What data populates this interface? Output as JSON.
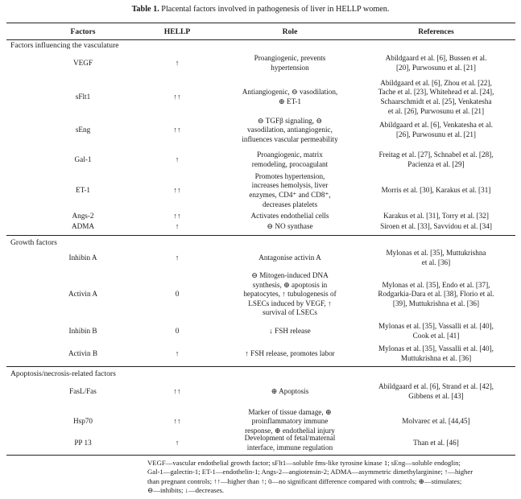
{
  "caption": {
    "label": "Table 1.",
    "text": "Placental factors involved in pathogenesis of liver in HELLP women."
  },
  "headers": {
    "factors": "Factors",
    "hellp": "HELLP",
    "role": "Role",
    "references": "References"
  },
  "sections": [
    {
      "title": "Factors influencing the vasculature",
      "rows": [
        {
          "factor": "VEGF",
          "hellp": "↑",
          "role": [
            "Proangiogenic, prevents",
            "hypertension"
          ],
          "refs": [
            "Abildgaard et al. [6], Bussen et al.",
            "[20], Purwosunu et al. [21]"
          ]
        },
        {
          "factor": "sFlt1",
          "hellp": "↑↑",
          "role": [
            "Antiangiogenic, ⊖ vasodilation,",
            "⊕ ET-1"
          ],
          "refs": [
            "Abildgaard et al. [6], Zhou et al. [22],",
            "Tache et al. [23], Whitehead et al. [24],",
            "Schaarschmidt et al. [25], Venkatesha",
            "et al. [26], Purwosunu et al. [21]"
          ]
        },
        {
          "factor": "sEng",
          "hellp": "↑↑",
          "role": [
            "⊖ TGFβ signaling, ⊖",
            "vasodilation, antiangiogenic,",
            "influences vascular permeability"
          ],
          "refs": [
            "Abildgaard et al. [6], Venkatesha et al.",
            "[26], Purwosunu et al. [21]"
          ]
        },
        {
          "factor": "Gal-1",
          "hellp": "↑",
          "role": [
            "Proangiogenic, matrix",
            "remodeling, procoagulant"
          ],
          "refs": [
            "Freitag et al. [27], Schnabel et al. [28],",
            "Pacienza et al. [29]"
          ]
        },
        {
          "factor": "ET-1",
          "hellp": "↑↑",
          "role": [
            "Promotes hypertension,",
            "increases hemolysis, liver",
            "enzymes, CD4⁺ and CD8⁺,",
            "decreases platelets"
          ],
          "refs": [
            "Morris et al. [30], Karakus et al. [31]"
          ]
        },
        {
          "factor": "Angs-2",
          "hellp": "↑↑",
          "role": [
            "Activates endothelial cells"
          ],
          "refs": [
            "Karakus et al. [31], Torry et al. [32]"
          ]
        },
        {
          "factor": "ADMA",
          "hellp": "↑",
          "role": [
            "⊖ NO synthase"
          ],
          "refs": [
            "Siroen et al. [33], Savvidou et al. [34]"
          ]
        }
      ]
    },
    {
      "title": "Growth factors",
      "rows": [
        {
          "factor": "Inhibin A",
          "hellp": "↑",
          "role": [
            "Antagonise activin A"
          ],
          "refs": [
            "Mylonas et al. [35], Muttukrishna",
            "et al. [36]"
          ]
        },
        {
          "factor": "Activin A",
          "hellp": "0",
          "role": [
            "⊖ Mitogen-induced DNA",
            "synthesis, ⊕ apoptosis in",
            "hepatocytes, ↑ tubulogenesis of",
            "LSECs induced by VEGF, ↑",
            "survival of LSECs"
          ],
          "refs": [
            "Mylonas et al. [35], Endo et al. [37],",
            "Rodgarkia-Dara et al. [38], Florio et al.",
            "[39], Muttukrishna et al. [36]"
          ]
        },
        {
          "factor": "Inhibin B",
          "hellp": "0",
          "role": [
            "↓ FSH release"
          ],
          "refs": [
            "Mylonas et al. [35], Vassalli et al. [40],",
            "Cook et al. [41]"
          ]
        },
        {
          "factor": "Activin B",
          "hellp": "↑",
          "role": [
            "↑ FSH release, promotes labor"
          ],
          "refs": [
            "Mylonas et al. [35], Vassalli et al. [40],",
            "Muttukrishna et al. [36]"
          ]
        }
      ]
    },
    {
      "title": "Apoptosis/necrosis-related factors",
      "rows": [
        {
          "factor": "FasL/Fas",
          "hellp": "↑↑",
          "role": [
            "⊕ Apoptosis"
          ],
          "refs": [
            "Abildgaard et al. [6], Strand et al. [42],",
            "Gibbens et al. [43]"
          ]
        },
        {
          "factor": "Hsp70",
          "hellp": "↑↑",
          "role": [
            "Marker of tissue damage, ⊕",
            "proinflammatory immune",
            "response, ⊕ endothelial injury"
          ],
          "refs": [
            "Molvarec et al. [44,45]"
          ]
        },
        {
          "factor": "PP 13",
          "hellp": "↑",
          "role": [
            "Development of fetal/maternal",
            "interface, immune regulation"
          ],
          "refs": [
            "Than et al. [46]"
          ]
        }
      ]
    }
  ],
  "footnote": [
    "VEGF—vascular endothelial growth factor; sFlt1—soluble fms-like tyrosine kinase 1; sEng—soluble endoglin;",
    "Gal-1—galectin-1; ET-1—endothelin-1; Angs-2—angiotensin-2; ADMA—asymmetric dimethylarginine; ↑—higher",
    "than pregnant controls; ↑↑—higher than ↑; 0—no significant difference compared with controls; ⊕—stimulates;",
    "⊖—inhibits; ↓—decreases."
  ]
}
